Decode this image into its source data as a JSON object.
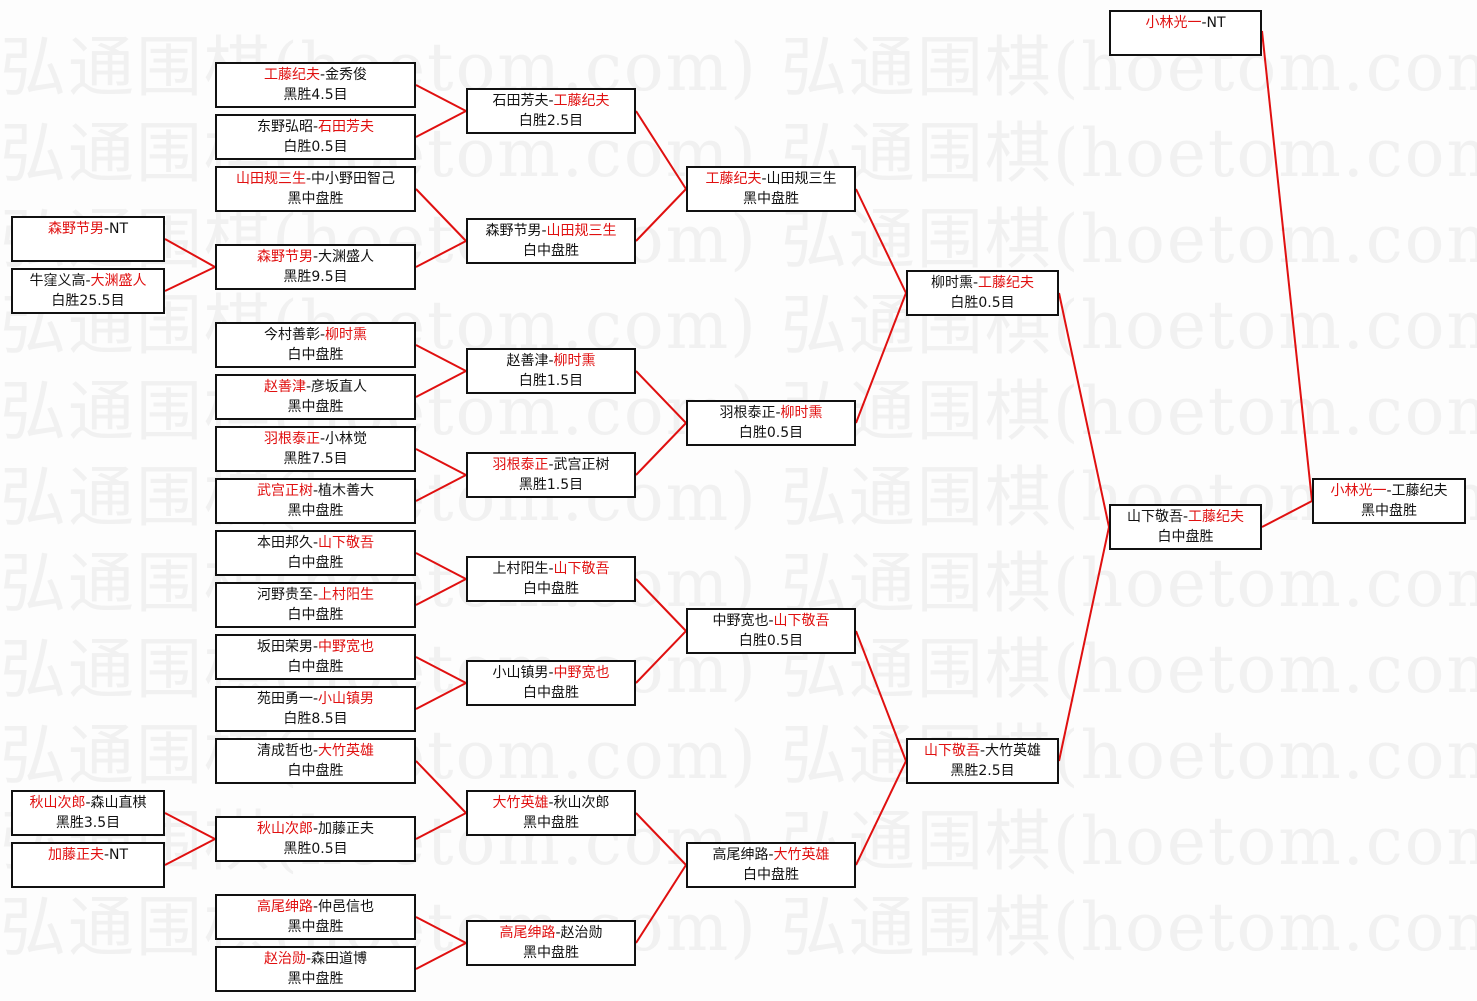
{
  "watermark": "弘通围棋(hoetom.com)",
  "colors": {
    "winner": "#e01010",
    "connector": "#e01010",
    "border": "#111111"
  },
  "matches": [
    {
      "p1": "工藤纪夫",
      "p2": "金秀俊",
      "winner": 1,
      "result": "黑胜4.5目"
    },
    {
      "p1": "东野弘昭",
      "p2": "石田芳夫",
      "winner": 2,
      "result": "白胜0.5目"
    },
    {
      "p1": "山田规三生",
      "p2": "中小野田智己",
      "winner": 1,
      "result": "黑中盘胜"
    },
    {
      "p1": "森野节男",
      "p2": "NT",
      "winner": 1,
      "result": ""
    },
    {
      "p1": "牛窪义高",
      "p2": "大渊盛人",
      "winner": 2,
      "result": "白胜25.5目"
    },
    {
      "p1": "森野节男",
      "p2": "大渊盛人",
      "winner": 1,
      "result": "黑胜9.5目"
    },
    {
      "p1": "今村善彰",
      "p2": "柳时熏",
      "winner": 2,
      "result": "白中盘胜"
    },
    {
      "p1": "赵善津",
      "p2": "彦坂直人",
      "winner": 1,
      "result": "黑中盘胜"
    },
    {
      "p1": "羽根泰正",
      "p2": "小林觉",
      "winner": 1,
      "result": "黑胜7.5目"
    },
    {
      "p1": "武宫正树",
      "p2": "植木善大",
      "winner": 1,
      "result": "黑中盘胜"
    },
    {
      "p1": "本田邦久",
      "p2": "山下敬吾",
      "winner": 2,
      "result": "白中盘胜"
    },
    {
      "p1": "河野贵至",
      "p2": "上村阳生",
      "winner": 2,
      "result": "白中盘胜"
    },
    {
      "p1": "坂田荣男",
      "p2": "中野宽也",
      "winner": 2,
      "result": "白中盘胜"
    },
    {
      "p1": "苑田勇一",
      "p2": "小山镇男",
      "winner": 2,
      "result": "白胜8.5目"
    },
    {
      "p1": "清成哲也",
      "p2": "大竹英雄",
      "winner": 2,
      "result": "白中盘胜"
    },
    {
      "p1": "秋山次郎",
      "p2": "森山直棋",
      "winner": 1,
      "result": "黑胜3.5目"
    },
    {
      "p1": "加藤正夫",
      "p2": "NT",
      "winner": 1,
      "result": ""
    },
    {
      "p1": "秋山次郎",
      "p2": "加藤正夫",
      "winner": 1,
      "result": "黑胜0.5目"
    },
    {
      "p1": "高尾绅路",
      "p2": "仲邑信也",
      "winner": 1,
      "result": "黑中盘胜"
    },
    {
      "p1": "赵治勋",
      "p2": "森田道博",
      "winner": 1,
      "result": "黑中盘胜"
    },
    {
      "p1": "石田芳夫",
      "p2": "工藤纪夫",
      "winner": 2,
      "result": "白胜2.5目"
    },
    {
      "p1": "森野节男",
      "p2": "山田规三生",
      "winner": 2,
      "result": "白中盘胜"
    },
    {
      "p1": "赵善津",
      "p2": "柳时熏",
      "winner": 2,
      "result": "白胜1.5目"
    },
    {
      "p1": "羽根泰正",
      "p2": "武宫正树",
      "winner": 1,
      "result": "黑胜1.5目"
    },
    {
      "p1": "上村阳生",
      "p2": "山下敬吾",
      "winner": 2,
      "result": "白中盘胜"
    },
    {
      "p1": "小山镇男",
      "p2": "中野宽也",
      "winner": 2,
      "result": "白中盘胜"
    },
    {
      "p1": "大竹英雄",
      "p2": "秋山次郎",
      "winner": 1,
      "result": "黑中盘胜"
    },
    {
      "p1": "高尾绅路",
      "p2": "赵治勋",
      "winner": 1,
      "result": "黑中盘胜"
    },
    {
      "p1": "工藤纪夫",
      "p2": "山田规三生",
      "winner": 1,
      "result": "黑中盘胜"
    },
    {
      "p1": "羽根泰正",
      "p2": "柳时熏",
      "winner": 2,
      "result": "白胜0.5目"
    },
    {
      "p1": "中野宽也",
      "p2": "山下敬吾",
      "winner": 2,
      "result": "白胜0.5目"
    },
    {
      "p1": "高尾绅路",
      "p2": "大竹英雄",
      "winner": 2,
      "result": "白中盘胜"
    },
    {
      "p1": "柳时熏",
      "p2": "工藤纪夫",
      "winner": 2,
      "result": "白胜0.5目"
    },
    {
      "p1": "山下敬吾",
      "p2": "大竹英雄",
      "winner": 1,
      "result": "黑胜2.5目"
    },
    {
      "p1": "山下敬吾",
      "p2": "工藤纪夫",
      "winner": 2,
      "result": "白中盘胜"
    },
    {
      "p1": "小林光一",
      "p2": "NT",
      "winner": 1,
      "result": ""
    },
    {
      "p1": "小林光一",
      "p2": "工藤纪夫",
      "winner": 1,
      "result": "黑中盘胜"
    }
  ]
}
